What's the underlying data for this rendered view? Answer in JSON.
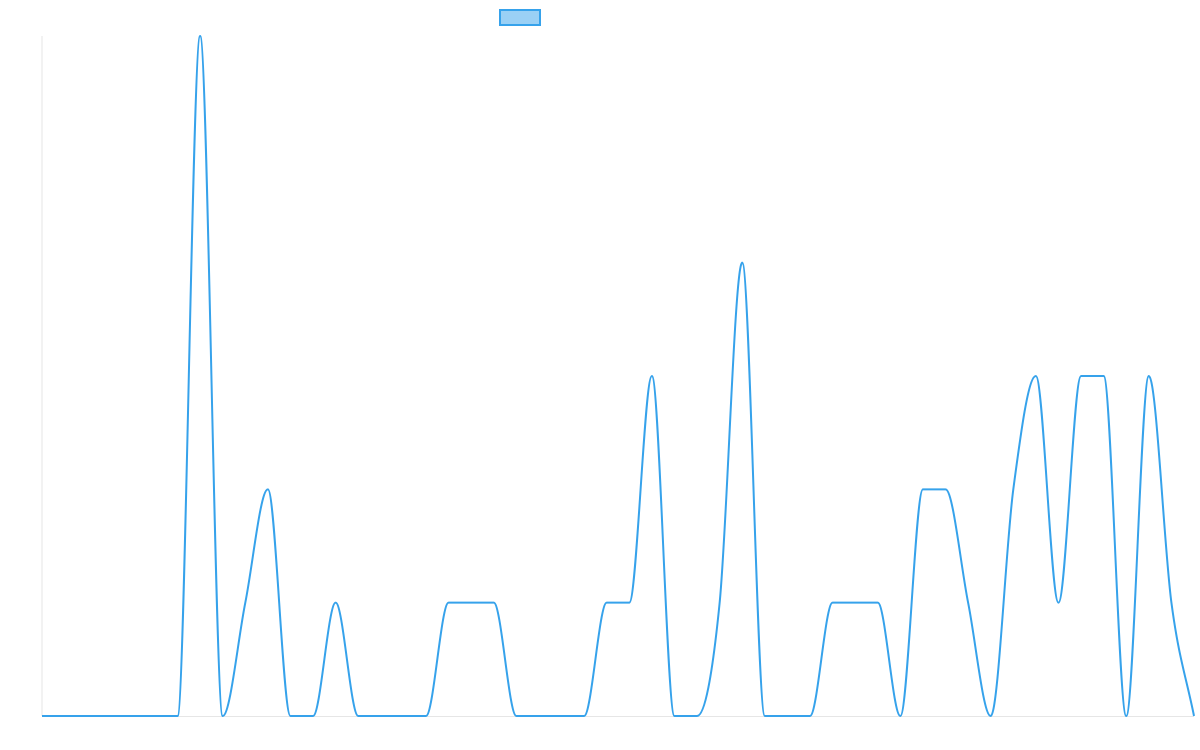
{
  "chart_data": {
    "type": "line",
    "categories": [
      null,
      null,
      null,
      null,
      null,
      null,
      null,
      null,
      null,
      null,
      null,
      null,
      null,
      null,
      null,
      null,
      null,
      null,
      null,
      null,
      null,
      null,
      null,
      null,
      null,
      null,
      null,
      null,
      null,
      null,
      null,
      null,
      null,
      null,
      null,
      null,
      null,
      null,
      null,
      null,
      null,
      null,
      null,
      null,
      null,
      null,
      null,
      null,
      null,
      null,
      null,
      null
    ],
    "series": [
      {
        "color": "#36a2eb",
        "values": [
          0,
          0,
          0,
          0,
          0,
          0,
          0,
          6,
          0,
          1,
          2,
          0,
          0,
          1,
          0,
          0,
          0,
          0,
          1,
          1,
          1,
          0,
          0,
          0,
          0,
          1,
          1,
          3,
          0,
          0,
          1,
          4,
          0,
          0,
          0,
          1,
          1,
          1,
          0,
          2,
          2,
          1,
          0,
          2,
          3,
          1,
          3,
          3,
          0,
          3,
          1,
          0
        ]
      }
    ],
    "ylim": [
      0,
      6
    ]
  }
}
